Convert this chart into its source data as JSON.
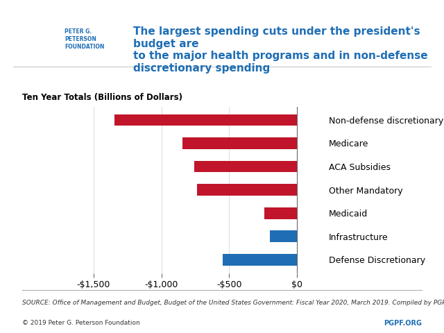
{
  "categories": [
    "Non-defense discretionary",
    "Medicare",
    "ACA Subsidies",
    "Other Mandatory",
    "Medicaid",
    "Infrastructure",
    "Defense Discretionary"
  ],
  "values": [
    -1346,
    -845,
    -756,
    -737,
    -241,
    -200,
    -549
  ],
  "colors": [
    "#c0152a",
    "#c0152a",
    "#c0152a",
    "#c0152a",
    "#c0152a",
    "#1f6eb5",
    "#1f6eb5"
  ],
  "xlim": [
    -1600,
    200
  ],
  "xticks": [
    -1500,
    -1000,
    -500,
    0
  ],
  "xticklabels": [
    "-$1,500",
    "-$1,000",
    "-$500",
    "$0"
  ],
  "subtitle": "Ten Year Totals (Billions of Dollars)",
  "title": "The largest spending cuts under the president's budget are\nto the major health programs and in non-defense\ndiscretionary spending",
  "source_text": "SOURCE: Office of Management and Budget, Budget of the United States Government: Fiscal Year 2020, March 2019. Compiled by PGPF.",
  "copyright_text": "© 2019 Peter G. Peterson Foundation",
  "pgpf_text": "PGPF.ORG",
  "title_color": "#1f6eb5",
  "subtitle_color": "#000000",
  "bar_height": 0.5,
  "bg_color": "#ffffff",
  "logo_org": "PETER G.\nPETERSON\nFOUNDATION"
}
